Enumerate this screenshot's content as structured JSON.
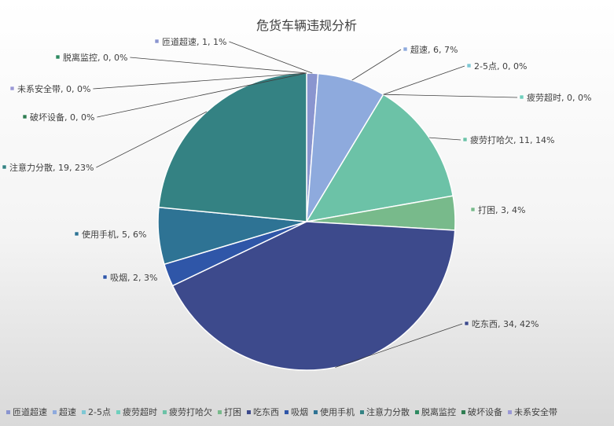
{
  "chart_data": {
    "type": "pie",
    "title": "危货车辆违规分析",
    "legend_position": "bottom",
    "slices": [
      {
        "name": "匝道超速",
        "value": 1,
        "pct_label": "1%",
        "color": "#8a95cf"
      },
      {
        "name": "超速",
        "value": 6,
        "pct_label": "7%",
        "color": "#8eaadd"
      },
      {
        "name": "2-5点",
        "value": 0,
        "pct_label": "0%",
        "color": "#7ec8d4"
      },
      {
        "name": "疲劳超时",
        "value": 0,
        "pct_label": "0%",
        "color": "#6fcfbd"
      },
      {
        "name": "疲劳打哈欠",
        "value": 11,
        "pct_label": "14%",
        "color": "#6cc2a7"
      },
      {
        "name": "打困",
        "value": 3,
        "pct_label": "4%",
        "color": "#78ba8b"
      },
      {
        "name": "吃东西",
        "value": 34,
        "pct_label": "42%",
        "color": "#3d4a8c"
      },
      {
        "name": "吸烟",
        "value": 2,
        "pct_label": "3%",
        "color": "#2f56a8"
      },
      {
        "name": "使用手机",
        "value": 5,
        "pct_label": "6%",
        "color": "#2e7394"
      },
      {
        "name": "注意力分散",
        "value": 19,
        "pct_label": "23%",
        "color": "#348283"
      },
      {
        "name": "脱离监控",
        "value": 0,
        "pct_label": "0%",
        "color": "#2e8a61"
      },
      {
        "name": "破坏设备",
        "value": 0,
        "pct_label": "0%",
        "color": "#2f7d52"
      },
      {
        "name": "未系安全带",
        "value": 0,
        "pct_label": "0%",
        "color": "#9a98d6"
      }
    ]
  }
}
